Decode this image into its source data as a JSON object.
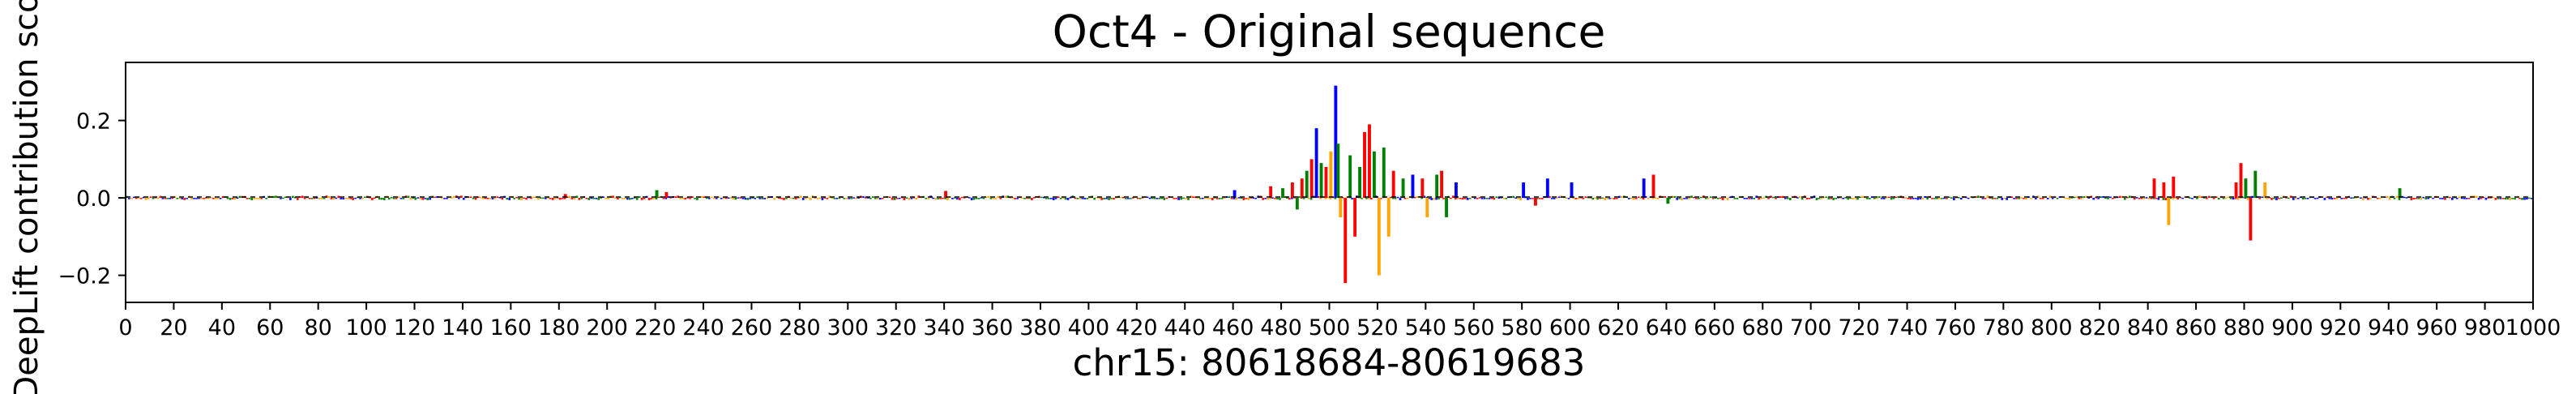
{
  "chart_data": {
    "type": "bar",
    "subtype": "sequence-logo",
    "title": "Oct4 - Original sequence",
    "xlabel": "chr15: 80618684-80619683",
    "ylabel": "DeepLift contribution sco",
    "xlim": [
      0,
      1000
    ],
    "ylim": [
      -0.27,
      0.35
    ],
    "x_ticks": [
      "0",
      "20",
      "40",
      "60",
      "80",
      "100",
      "120",
      "140",
      "160",
      "180",
      "200",
      "220",
      "240",
      "260",
      "280",
      "300",
      "320",
      "340",
      "360",
      "380",
      "400",
      "420",
      "440",
      "460",
      "480",
      "500",
      "520",
      "540",
      "560",
      "580",
      "600",
      "620",
      "640",
      "660",
      "680",
      "700",
      "720",
      "740",
      "760",
      "780",
      "800",
      "820",
      "840",
      "860",
      "880",
      "900",
      "920",
      "940",
      "960",
      "980",
      "1000"
    ],
    "y_ticks": [
      "0.2",
      "0.0",
      "−0.2"
    ],
    "y_tick_values": [
      0.2,
      0.0,
      -0.2
    ],
    "grid": false,
    "legend": "none",
    "base_colors": {
      "A": "#008000",
      "C": "#0000ff",
      "G": "#ffa500",
      "T": "#ff0000"
    },
    "series": [
      {
        "position": 182,
        "base": "T",
        "value": 0.01
      },
      {
        "position": 220,
        "base": "A",
        "value": 0.02
      },
      {
        "position": 224,
        "base": "T",
        "value": 0.015
      },
      {
        "position": 340,
        "base": "T",
        "value": 0.018
      },
      {
        "position": 460,
        "base": "C",
        "value": 0.02
      },
      {
        "position": 475,
        "base": "T",
        "value": 0.03
      },
      {
        "position": 480,
        "base": "A",
        "value": 0.025
      },
      {
        "position": 484,
        "base": "T",
        "value": 0.04
      },
      {
        "position": 486,
        "base": "A",
        "value": -0.03
      },
      {
        "position": 488,
        "base": "T",
        "value": 0.05
      },
      {
        "position": 490,
        "base": "A",
        "value": 0.07
      },
      {
        "position": 492,
        "base": "T",
        "value": 0.1
      },
      {
        "position": 494,
        "base": "C",
        "value": 0.18
      },
      {
        "position": 496,
        "base": "A",
        "value": 0.09
      },
      {
        "position": 498,
        "base": "T",
        "value": 0.08
      },
      {
        "position": 500,
        "base": "G",
        "value": 0.12
      },
      {
        "position": 502,
        "base": "C",
        "value": 0.29
      },
      {
        "position": 503,
        "base": "A",
        "value": 0.14
      },
      {
        "position": 504,
        "base": "G",
        "value": -0.05
      },
      {
        "position": 506,
        "base": "T",
        "value": -0.22
      },
      {
        "position": 508,
        "base": "A",
        "value": 0.11
      },
      {
        "position": 510,
        "base": "T",
        "value": -0.1
      },
      {
        "position": 512,
        "base": "A",
        "value": 0.08
      },
      {
        "position": 514,
        "base": "T",
        "value": 0.17
      },
      {
        "position": 516,
        "base": "T",
        "value": 0.19
      },
      {
        "position": 518,
        "base": "A",
        "value": 0.12
      },
      {
        "position": 520,
        "base": "G",
        "value": -0.2
      },
      {
        "position": 522,
        "base": "A",
        "value": 0.13
      },
      {
        "position": 524,
        "base": "G",
        "value": -0.1
      },
      {
        "position": 526,
        "base": "T",
        "value": 0.07
      },
      {
        "position": 530,
        "base": "A",
        "value": 0.05
      },
      {
        "position": 534,
        "base": "C",
        "value": 0.06
      },
      {
        "position": 538,
        "base": "T",
        "value": 0.05
      },
      {
        "position": 540,
        "base": "G",
        "value": -0.05
      },
      {
        "position": 544,
        "base": "A",
        "value": 0.06
      },
      {
        "position": 546,
        "base": "T",
        "value": 0.07
      },
      {
        "position": 548,
        "base": "A",
        "value": -0.05
      },
      {
        "position": 552,
        "base": "C",
        "value": 0.04
      },
      {
        "position": 580,
        "base": "C",
        "value": 0.04
      },
      {
        "position": 585,
        "base": "T",
        "value": -0.02
      },
      {
        "position": 590,
        "base": "C",
        "value": 0.05
      },
      {
        "position": 600,
        "base": "C",
        "value": 0.04
      },
      {
        "position": 630,
        "base": "C",
        "value": 0.05
      },
      {
        "position": 634,
        "base": "T",
        "value": 0.06
      },
      {
        "position": 640,
        "base": "A",
        "value": -0.015
      },
      {
        "position": 842,
        "base": "T",
        "value": 0.05
      },
      {
        "position": 846,
        "base": "T",
        "value": 0.04
      },
      {
        "position": 848,
        "base": "G",
        "value": -0.07
      },
      {
        "position": 850,
        "base": "T",
        "value": 0.055
      },
      {
        "position": 876,
        "base": "T",
        "value": 0.04
      },
      {
        "position": 878,
        "base": "T",
        "value": 0.09
      },
      {
        "position": 880,
        "base": "A",
        "value": 0.05
      },
      {
        "position": 882,
        "base": "T",
        "value": -0.11
      },
      {
        "position": 884,
        "base": "A",
        "value": 0.07
      },
      {
        "position": 888,
        "base": "G",
        "value": 0.04
      },
      {
        "position": 944,
        "base": "A",
        "value": 0.025
      }
    ]
  }
}
